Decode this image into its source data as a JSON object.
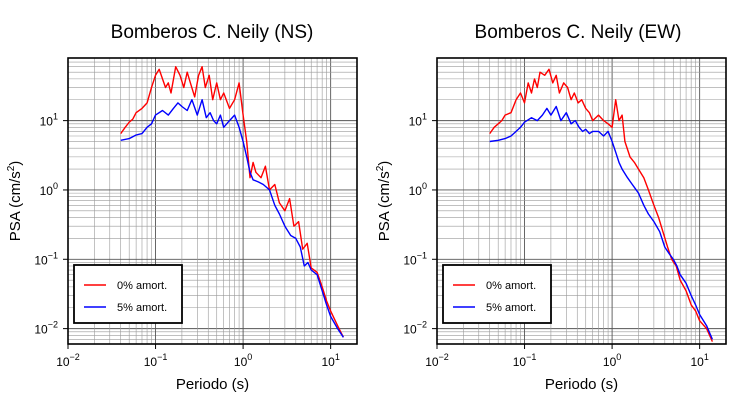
{
  "chart_data": [
    {
      "type": "line",
      "title": "Bomberos C. Neily (NS)",
      "xlabel": "Periodo (s)",
      "ylabel": "PSA (cm/s²)",
      "ylabel_main": "PSA (cm/s",
      "ylabel_sup": "2",
      "ylabel_end": ")",
      "xscale": "log",
      "yscale": "log",
      "xlim": [
        0.01,
        20
      ],
      "ylim": [
        0.006,
        80
      ],
      "x_ticks": [
        {
          "base": "10",
          "exp": "−2"
        },
        {
          "base": "10",
          "exp": "−1"
        },
        {
          "base": "10",
          "exp": "0"
        },
        {
          "base": "10",
          "exp": "1"
        }
      ],
      "y_ticks": [
        {
          "base": "10",
          "exp": "−2"
        },
        {
          "base": "10",
          "exp": "−1"
        },
        {
          "base": "10",
          "exp": "0"
        },
        {
          "base": "10",
          "exp": "1"
        }
      ],
      "grid": true,
      "legend_position": "bottom-left",
      "series": [
        {
          "name": "0% amort.",
          "color": "#ff0000",
          "x": [
            0.04,
            0.045,
            0.05,
            0.055,
            0.06,
            0.07,
            0.08,
            0.09,
            0.1,
            0.11,
            0.12,
            0.13,
            0.14,
            0.15,
            0.17,
            0.19,
            0.21,
            0.23,
            0.25,
            0.28,
            0.31,
            0.34,
            0.37,
            0.41,
            0.45,
            0.5,
            0.55,
            0.6,
            0.7,
            0.8,
            0.9,
            1.0,
            1.1,
            1.2,
            1.3,
            1.4,
            1.6,
            1.8,
            2.0,
            2.3,
            2.6,
            3.0,
            3.4,
            3.8,
            4.3,
            4.8,
            5.4,
            6.0,
            7.0,
            8.0,
            9.0,
            10.0,
            12.0,
            14.0
          ],
          "y": [
            6.5,
            8.0,
            9.5,
            10.5,
            13.0,
            15.0,
            18.0,
            30.0,
            45.0,
            55.0,
            40.0,
            30.0,
            35.0,
            25.0,
            60.0,
            45.0,
            30.0,
            50.0,
            35.0,
            22.0,
            45.0,
            60.0,
            30.0,
            45.0,
            20.0,
            35.0,
            20.0,
            25.0,
            15.0,
            20.0,
            35.0,
            12.0,
            5.0,
            1.5,
            2.5,
            1.8,
            1.5,
            2.2,
            1.0,
            1.2,
            0.65,
            0.5,
            0.75,
            0.3,
            0.35,
            0.14,
            0.17,
            0.075,
            0.065,
            0.04,
            0.025,
            0.018,
            0.011,
            0.0075
          ]
        },
        {
          "name": "5% amort.",
          "color": "#0000ff",
          "x": [
            0.04,
            0.05,
            0.06,
            0.07,
            0.08,
            0.09,
            0.1,
            0.12,
            0.14,
            0.16,
            0.18,
            0.2,
            0.23,
            0.26,
            0.3,
            0.34,
            0.38,
            0.42,
            0.46,
            0.5,
            0.55,
            0.6,
            0.7,
            0.8,
            0.9,
            1.0,
            1.1,
            1.2,
            1.3,
            1.5,
            1.7,
            2.0,
            2.3,
            2.6,
            3.0,
            3.5,
            4.0,
            4.5,
            5.0,
            5.5,
            6.0,
            7.0,
            8.0,
            9.0,
            10.0,
            12.0,
            14.0
          ],
          "y": [
            5.2,
            5.5,
            6.2,
            6.5,
            8.0,
            9.0,
            12.0,
            14.0,
            12.0,
            15.0,
            18.0,
            16.0,
            14.0,
            20.0,
            12.0,
            20.0,
            11.0,
            13.0,
            10.0,
            9.0,
            12.0,
            8.0,
            10.0,
            12.0,
            8.0,
            5.0,
            3.0,
            1.8,
            1.4,
            1.3,
            1.2,
            1.0,
            0.6,
            0.45,
            0.3,
            0.22,
            0.2,
            0.15,
            0.08,
            0.09,
            0.07,
            0.06,
            0.035,
            0.022,
            0.015,
            0.01,
            0.0075
          ]
        }
      ]
    },
    {
      "type": "line",
      "title": "Bomberos C. Neily (EW)",
      "xlabel": "Periodo (s)",
      "ylabel": "PSA (cm/s²)",
      "ylabel_main": "PSA (cm/s",
      "ylabel_sup": "2",
      "ylabel_end": ")",
      "xscale": "log",
      "yscale": "log",
      "xlim": [
        0.01,
        20
      ],
      "ylim": [
        0.006,
        80
      ],
      "x_ticks": [
        {
          "base": "10",
          "exp": "−2"
        },
        {
          "base": "10",
          "exp": "−1"
        },
        {
          "base": "10",
          "exp": "0"
        },
        {
          "base": "10",
          "exp": "1"
        }
      ],
      "y_ticks": [
        {
          "base": "10",
          "exp": "−2"
        },
        {
          "base": "10",
          "exp": "−1"
        },
        {
          "base": "10",
          "exp": "0"
        },
        {
          "base": "10",
          "exp": "1"
        }
      ],
      "grid": true,
      "legend_position": "bottom-left",
      "series": [
        {
          "name": "0% amort.",
          "color": "#ff0000",
          "x": [
            0.04,
            0.045,
            0.05,
            0.055,
            0.06,
            0.07,
            0.08,
            0.09,
            0.1,
            0.11,
            0.12,
            0.13,
            0.14,
            0.15,
            0.17,
            0.19,
            0.21,
            0.23,
            0.25,
            0.28,
            0.31,
            0.34,
            0.37,
            0.41,
            0.45,
            0.5,
            0.55,
            0.6,
            0.7,
            0.8,
            0.9,
            1.0,
            1.1,
            1.2,
            1.3,
            1.4,
            1.6,
            1.8,
            2.0,
            2.3,
            2.6,
            3.0,
            3.4,
            3.8,
            4.3,
            4.8,
            5.4,
            6.0,
            7.0,
            8.0,
            9.0,
            10.0,
            12.0,
            14.0
          ],
          "y": [
            6.5,
            8.0,
            9.0,
            10.0,
            12.0,
            13.0,
            20.0,
            25.0,
            18.0,
            35.0,
            25.0,
            40.0,
            30.0,
            50.0,
            45.0,
            55.0,
            35.0,
            45.0,
            25.0,
            35.0,
            30.0,
            20.0,
            25.0,
            18.0,
            20.0,
            15.0,
            13.0,
            10.0,
            12.0,
            10.0,
            9.0,
            8.0,
            20.0,
            10.0,
            12.0,
            5.0,
            3.0,
            2.5,
            2.0,
            1.5,
            1.0,
            0.6,
            0.4,
            0.25,
            0.15,
            0.1,
            0.08,
            0.05,
            0.035,
            0.022,
            0.018,
            0.013,
            0.01,
            0.0065
          ]
        },
        {
          "name": "5% amort.",
          "color": "#0000ff",
          "x": [
            0.04,
            0.05,
            0.06,
            0.07,
            0.08,
            0.09,
            0.1,
            0.12,
            0.14,
            0.16,
            0.18,
            0.2,
            0.23,
            0.26,
            0.3,
            0.34,
            0.38,
            0.42,
            0.46,
            0.5,
            0.55,
            0.6,
            0.7,
            0.8,
            0.9,
            1.0,
            1.1,
            1.2,
            1.3,
            1.5,
            1.7,
            2.0,
            2.3,
            2.6,
            3.0,
            3.5,
            4.0,
            4.5,
            5.0,
            5.5,
            6.0,
            7.0,
            8.0,
            9.0,
            10.0,
            12.0,
            14.0
          ],
          "y": [
            5.0,
            5.2,
            5.5,
            6.0,
            7.0,
            8.0,
            9.5,
            11.0,
            10.0,
            12.0,
            15.0,
            12.0,
            16.0,
            10.0,
            13.0,
            9.0,
            10.0,
            8.0,
            7.0,
            7.5,
            6.5,
            7.0,
            7.0,
            6.0,
            7.0,
            5.0,
            3.5,
            2.5,
            2.0,
            1.5,
            1.2,
            0.9,
            0.6,
            0.45,
            0.35,
            0.25,
            0.15,
            0.12,
            0.1,
            0.08,
            0.06,
            0.045,
            0.03,
            0.022,
            0.016,
            0.011,
            0.007
          ]
        }
      ]
    }
  ]
}
